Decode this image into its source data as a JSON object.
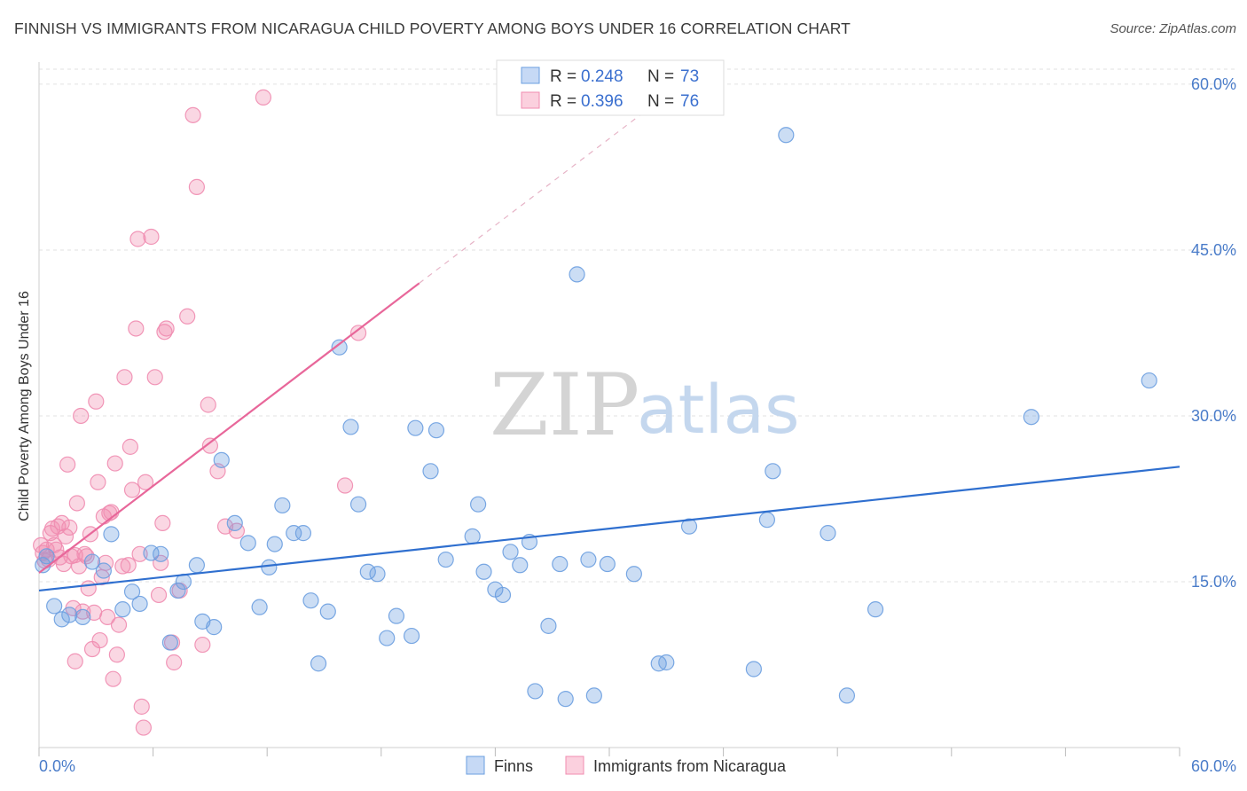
{
  "title": "FINNISH VS IMMIGRANTS FROM NICARAGUA CHILD POVERTY AMONG BOYS UNDER 16 CORRELATION CHART",
  "source": "Source: ZipAtlas.com",
  "watermark": {
    "zip": "ZIP",
    "atlas": "atlas"
  },
  "colors": {
    "finns": "#6b9fe0",
    "nicaragua": "#f08cb0",
    "finns_line": "#2f6fcf",
    "nicaragua_line": "#e8679a",
    "tick": "#4a7cc9"
  },
  "legend": {
    "finns": {
      "r_label": "R =",
      "r_value": "0.248",
      "n_label": "N =",
      "n_value": "73"
    },
    "nicaragua": {
      "r_label": "R =",
      "r_value": "0.396",
      "n_label": "N =",
      "n_value": "76"
    }
  },
  "bottom_legend": {
    "finns": "Finns",
    "nicaragua": "Immigrants from Nicaragua"
  },
  "chart_data": {
    "type": "scatter",
    "title": "FINNISH VS IMMIGRANTS FROM NICARAGUA CHILD POVERTY AMONG BOYS UNDER 16 CORRELATION CHART",
    "xlabel": "",
    "ylabel": "Child Poverty Among Boys Under 16",
    "xlim": [
      0,
      60
    ],
    "ylim": [
      0,
      62
    ],
    "x_tick_labels": {
      "left": "0.0%",
      "right": "60.0%"
    },
    "y_ticks": [
      15,
      30,
      45,
      60
    ],
    "y_tick_labels": [
      "15.0%",
      "30.0%",
      "45.0%",
      "60.0%"
    ],
    "grid": true,
    "series": [
      {
        "name": "Finns",
        "R": 0.248,
        "N": 73,
        "trend": {
          "x0": 0,
          "y0": 14.2,
          "x1": 60,
          "y1": 25.4
        },
        "points": [
          [
            0.2,
            16.5
          ],
          [
            0.8,
            12.8
          ],
          [
            1.2,
            11.6
          ],
          [
            1.6,
            12.0
          ],
          [
            2.3,
            11.8
          ],
          [
            2.8,
            16.8
          ],
          [
            3.4,
            16.0
          ],
          [
            3.8,
            19.3
          ],
          [
            4.4,
            12.5
          ],
          [
            4.9,
            14.1
          ],
          [
            5.3,
            13.0
          ],
          [
            5.9,
            17.6
          ],
          [
            6.4,
            17.5
          ],
          [
            6.9,
            9.5
          ],
          [
            7.3,
            14.2
          ],
          [
            7.6,
            15.0
          ],
          [
            8.3,
            16.5
          ],
          [
            8.6,
            11.4
          ],
          [
            9.2,
            10.9
          ],
          [
            9.6,
            26.0
          ],
          [
            10.3,
            20.3
          ],
          [
            11.0,
            18.5
          ],
          [
            11.6,
            12.7
          ],
          [
            12.1,
            16.3
          ],
          [
            12.4,
            18.4
          ],
          [
            12.8,
            21.9
          ],
          [
            13.4,
            19.4
          ],
          [
            13.9,
            19.4
          ],
          [
            14.3,
            13.3
          ],
          [
            14.7,
            7.6
          ],
          [
            15.2,
            12.3
          ],
          [
            15.8,
            36.2
          ],
          [
            16.4,
            29.0
          ],
          [
            16.8,
            22.0
          ],
          [
            17.3,
            15.9
          ],
          [
            17.8,
            15.7
          ],
          [
            18.3,
            9.9
          ],
          [
            18.8,
            11.9
          ],
          [
            19.6,
            10.1
          ],
          [
            19.8,
            28.9
          ],
          [
            20.6,
            25.0
          ],
          [
            20.9,
            28.7
          ],
          [
            21.4,
            17.0
          ],
          [
            22.8,
            19.1
          ],
          [
            23.1,
            22.0
          ],
          [
            23.4,
            15.9
          ],
          [
            24.0,
            14.3
          ],
          [
            24.4,
            13.8
          ],
          [
            24.8,
            17.7
          ],
          [
            25.3,
            16.5
          ],
          [
            25.8,
            18.6
          ],
          [
            26.1,
            5.1
          ],
          [
            26.8,
            11.0
          ],
          [
            27.4,
            16.6
          ],
          [
            27.7,
            4.4
          ],
          [
            28.3,
            42.8
          ],
          [
            28.9,
            17.0
          ],
          [
            29.2,
            4.7
          ],
          [
            29.9,
            16.6
          ],
          [
            31.3,
            15.7
          ],
          [
            32.6,
            7.6
          ],
          [
            33.0,
            7.7
          ],
          [
            34.2,
            20.0
          ],
          [
            37.6,
            7.1
          ],
          [
            38.3,
            20.6
          ],
          [
            38.6,
            25.0
          ],
          [
            39.3,
            55.4
          ],
          [
            41.5,
            19.4
          ],
          [
            42.5,
            4.7
          ],
          [
            44.0,
            12.5
          ],
          [
            52.2,
            29.9
          ],
          [
            58.4,
            33.2
          ],
          [
            0.4,
            17.3
          ]
        ]
      },
      {
        "name": "Immigrants from Nicaragua",
        "R": 0.396,
        "N": 76,
        "trend": {
          "x0": 0,
          "y0": 15.8,
          "x1": 20,
          "y1": 42.0
        },
        "trend_dashed_to": {
          "x": 32,
          "y": 57.7
        },
        "points": [
          [
            0.1,
            18.3
          ],
          [
            0.2,
            17.6
          ],
          [
            0.3,
            16.9
          ],
          [
            0.4,
            17.9
          ],
          [
            0.5,
            17.0
          ],
          [
            0.7,
            19.8
          ],
          [
            0.8,
            18.3
          ],
          [
            0.9,
            17.9
          ],
          [
            1.0,
            20.0
          ],
          [
            1.2,
            20.3
          ],
          [
            1.3,
            16.6
          ],
          [
            1.4,
            19.1
          ],
          [
            1.5,
            25.6
          ],
          [
            1.6,
            19.9
          ],
          [
            1.7,
            17.3
          ],
          [
            1.8,
            12.6
          ],
          [
            1.9,
            17.4
          ],
          [
            1.9,
            7.8
          ],
          [
            2.0,
            22.1
          ],
          [
            2.1,
            16.4
          ],
          [
            2.2,
            30.0
          ],
          [
            2.3,
            12.3
          ],
          [
            2.4,
            17.5
          ],
          [
            2.5,
            17.3
          ],
          [
            2.6,
            14.4
          ],
          [
            2.7,
            19.3
          ],
          [
            2.8,
            8.9
          ],
          [
            2.9,
            12.2
          ],
          [
            3.0,
            31.3
          ],
          [
            3.2,
            9.7
          ],
          [
            3.3,
            15.4
          ],
          [
            3.4,
            20.9
          ],
          [
            3.5,
            16.7
          ],
          [
            3.6,
            11.8
          ],
          [
            3.7,
            21.2
          ],
          [
            3.8,
            21.3
          ],
          [
            3.9,
            6.2
          ],
          [
            4.0,
            25.7
          ],
          [
            4.1,
            8.4
          ],
          [
            4.2,
            11.1
          ],
          [
            4.4,
            16.4
          ],
          [
            4.5,
            33.5
          ],
          [
            4.7,
            16.5
          ],
          [
            4.8,
            27.2
          ],
          [
            4.9,
            23.3
          ],
          [
            5.1,
            37.9
          ],
          [
            5.2,
            46.0
          ],
          [
            5.3,
            17.5
          ],
          [
            5.4,
            3.7
          ],
          [
            5.5,
            1.8
          ],
          [
            5.6,
            24.0
          ],
          [
            5.9,
            46.2
          ],
          [
            6.1,
            33.5
          ],
          [
            6.3,
            13.8
          ],
          [
            6.4,
            16.7
          ],
          [
            6.5,
            20.3
          ],
          [
            6.6,
            37.6
          ],
          [
            6.7,
            37.9
          ],
          [
            7.0,
            9.5
          ],
          [
            7.1,
            7.7
          ],
          [
            7.4,
            14.2
          ],
          [
            7.8,
            39.0
          ],
          [
            8.1,
            57.2
          ],
          [
            8.3,
            50.7
          ],
          [
            8.6,
            9.3
          ],
          [
            8.9,
            31.0
          ],
          [
            9.0,
            27.3
          ],
          [
            9.4,
            25.0
          ],
          [
            9.8,
            20.0
          ],
          [
            10.4,
            19.6
          ],
          [
            11.8,
            58.8
          ],
          [
            16.1,
            23.7
          ],
          [
            16.8,
            37.5
          ],
          [
            3.1,
            24.0
          ],
          [
            0.6,
            19.4
          ],
          [
            1.1,
            17.2
          ]
        ]
      }
    ]
  }
}
